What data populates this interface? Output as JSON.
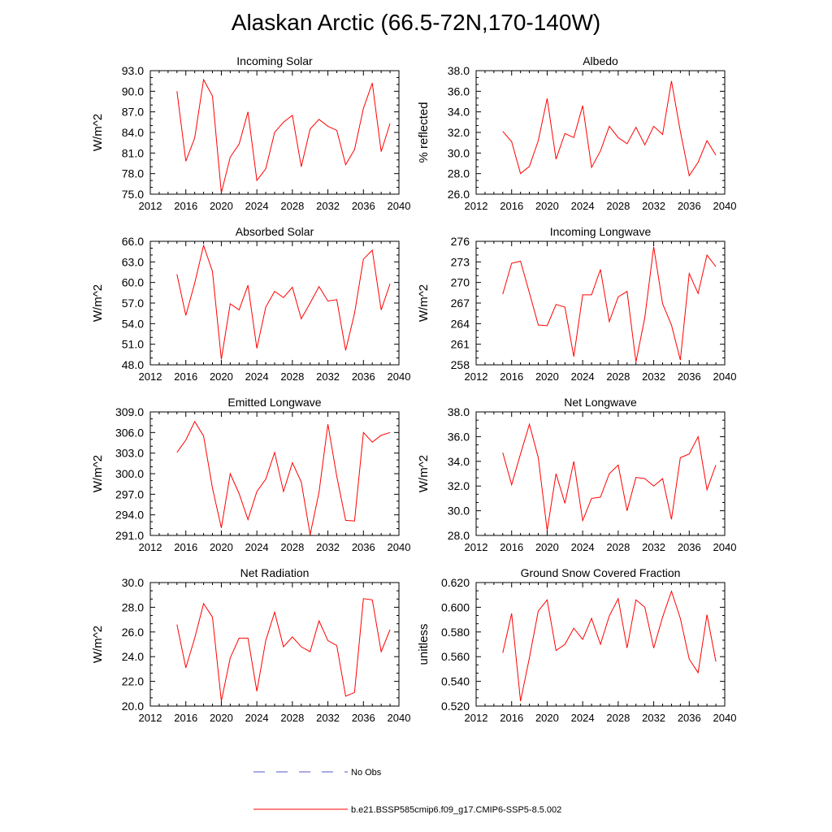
{
  "figure": {
    "title": "Alaskan Arctic (66.5-72N,170-140W)"
  },
  "legend": {
    "obs_label": "No Obs",
    "obs_color": "#5555cc",
    "model_label": "b.e21.BSSP585cmip6.f09_g17.CMIP6-SSP5-8.5.002",
    "model_color": "#ff0000"
  },
  "chart_data": [
    {
      "type": "line",
      "title": "Incoming Solar",
      "ylabel": "W/m^2",
      "xlim": [
        2012,
        2040
      ],
      "xticks": [
        2012,
        2016,
        2020,
        2024,
        2028,
        2032,
        2036,
        2040
      ],
      "ylim": [
        75.0,
        93.0
      ],
      "yticks": [
        "75.0",
        "78.0",
        "81.0",
        "84.0",
        "87.0",
        "90.0",
        "93.0"
      ],
      "x": [
        2015,
        2016,
        2017,
        2018,
        2019,
        2020,
        2021,
        2022,
        2023,
        2024,
        2025,
        2026,
        2027,
        2028,
        2029,
        2030,
        2031,
        2032,
        2033,
        2034,
        2035,
        2036,
        2037,
        2038,
        2039
      ],
      "series": [
        {
          "name": "b.e21.BSSP585cmip6.f09_g17.CMIP6-SSP5-8.5.002",
          "values": [
            90.0,
            79.8,
            83.2,
            91.7,
            89.3,
            75.2,
            80.4,
            82.3,
            87.0,
            77.0,
            78.7,
            84.0,
            85.5,
            86.5,
            79.0,
            84.5,
            85.9,
            84.9,
            84.3,
            79.3,
            81.5,
            87.5,
            91.2,
            81.2,
            85.3
          ]
        }
      ]
    },
    {
      "type": "line",
      "title": "Albedo",
      "ylabel": "% reflected",
      "xlim": [
        2012,
        2040
      ],
      "xticks": [
        2012,
        2016,
        2020,
        2024,
        2028,
        2032,
        2036,
        2040
      ],
      "ylim": [
        26.0,
        38.0
      ],
      "yticks": [
        "26.0",
        "28.0",
        "30.0",
        "32.0",
        "34.0",
        "36.0",
        "38.0"
      ],
      "x": [
        2015,
        2016,
        2017,
        2018,
        2019,
        2020,
        2021,
        2022,
        2023,
        2024,
        2025,
        2026,
        2027,
        2028,
        2029,
        2030,
        2031,
        2032,
        2033,
        2034,
        2035,
        2036,
        2037,
        2038,
        2039
      ],
      "series": [
        {
          "name": "b.e21.BSSP585cmip6.f09_g17.CMIP6-SSP5-8.5.002",
          "values": [
            32.1,
            31.1,
            28.0,
            28.7,
            31.2,
            35.3,
            29.4,
            31.9,
            31.5,
            34.6,
            28.6,
            30.2,
            32.6,
            31.5,
            30.9,
            32.5,
            30.8,
            32.6,
            31.8,
            37.0,
            32.1,
            27.8,
            29.1,
            31.2,
            29.8
          ]
        }
      ]
    },
    {
      "type": "line",
      "title": "Absorbed Solar",
      "ylabel": "W/m^2",
      "xlim": [
        2012,
        2040
      ],
      "xticks": [
        2012,
        2016,
        2020,
        2024,
        2028,
        2032,
        2036,
        2040
      ],
      "ylim": [
        48.0,
        66.0
      ],
      "yticks": [
        "48.0",
        "51.0",
        "54.0",
        "57.0",
        "60.0",
        "63.0",
        "66.0"
      ],
      "x": [
        2015,
        2016,
        2017,
        2018,
        2019,
        2020,
        2021,
        2022,
        2023,
        2024,
        2025,
        2026,
        2027,
        2028,
        2029,
        2030,
        2031,
        2032,
        2033,
        2034,
        2035,
        2036,
        2037,
        2038,
        2039
      ],
      "series": [
        {
          "name": "b.e21.BSSP585cmip6.f09_g17.CMIP6-SSP5-8.5.002",
          "values": [
            61.2,
            55.2,
            59.9,
            65.4,
            61.6,
            48.8,
            56.9,
            56.0,
            59.6,
            50.4,
            56.4,
            58.7,
            57.8,
            59.3,
            54.7,
            57.0,
            59.4,
            57.3,
            57.5,
            50.1,
            55.5,
            63.4,
            64.7,
            56.0,
            59.8
          ]
        }
      ]
    },
    {
      "type": "line",
      "title": "Incoming Longwave",
      "ylabel": "W/m^2",
      "xlim": [
        2012,
        2040
      ],
      "xticks": [
        2012,
        2016,
        2020,
        2024,
        2028,
        2032,
        2036,
        2040
      ],
      "ylim": [
        258,
        276
      ],
      "yticks": [
        "258",
        "261",
        "264",
        "267",
        "270",
        "273",
        "276"
      ],
      "x": [
        2015,
        2016,
        2017,
        2018,
        2019,
        2020,
        2021,
        2022,
        2023,
        2024,
        2025,
        2026,
        2027,
        2028,
        2029,
        2030,
        2031,
        2032,
        2033,
        2034,
        2035,
        2036,
        2037,
        2038,
        2039
      ],
      "series": [
        {
          "name": "b.e21.BSSP585cmip6.f09_g17.CMIP6-SSP5-8.5.002",
          "values": [
            268.3,
            272.8,
            273.1,
            268.5,
            263.8,
            263.7,
            266.8,
            266.4,
            259.2,
            268.2,
            268.2,
            271.9,
            264.3,
            267.9,
            268.7,
            258.4,
            264.9,
            275.2,
            266.9,
            263.8,
            258.7,
            271.3,
            268.4,
            274.0,
            272.3
          ]
        }
      ]
    },
    {
      "type": "line",
      "title": "Emitted Longwave",
      "ylabel": "W/m^2",
      "xlim": [
        2012,
        2040
      ],
      "xticks": [
        2012,
        2016,
        2020,
        2024,
        2028,
        2032,
        2036,
        2040
      ],
      "ylim": [
        291.0,
        309.0
      ],
      "yticks": [
        "291.0",
        "294.0",
        "297.0",
        "300.0",
        "303.0",
        "306.0",
        "309.0"
      ],
      "x": [
        2015,
        2016,
        2017,
        2018,
        2019,
        2020,
        2021,
        2022,
        2023,
        2024,
        2025,
        2026,
        2027,
        2028,
        2029,
        2030,
        2031,
        2032,
        2033,
        2034,
        2035,
        2036,
        2037,
        2038,
        2039
      ],
      "series": [
        {
          "name": "b.e21.BSSP585cmip6.f09_g17.CMIP6-SSP5-8.5.002",
          "values": [
            303.1,
            304.9,
            307.6,
            305.5,
            297.9,
            292.1,
            300.0,
            297.1,
            293.3,
            297.4,
            299.2,
            303.1,
            297.4,
            301.6,
            298.8,
            291.1,
            297.3,
            307.2,
            299.6,
            293.2,
            293.1,
            306.0,
            304.6,
            305.6,
            306.0
          ]
        }
      ]
    },
    {
      "type": "line",
      "title": "Net Longwave",
      "ylabel": "W/m^2",
      "xlim": [
        2012,
        2040
      ],
      "xticks": [
        2012,
        2016,
        2020,
        2024,
        2028,
        2032,
        2036,
        2040
      ],
      "ylim": [
        28.0,
        38.0
      ],
      "yticks": [
        "28.0",
        "30.0",
        "32.0",
        "34.0",
        "36.0",
        "38.0"
      ],
      "x": [
        2015,
        2016,
        2017,
        2018,
        2019,
        2020,
        2021,
        2022,
        2023,
        2024,
        2025,
        2026,
        2027,
        2028,
        2029,
        2030,
        2031,
        2032,
        2033,
        2034,
        2035,
        2036,
        2037,
        2038,
        2039
      ],
      "series": [
        {
          "name": "b.e21.BSSP585cmip6.f09_g17.CMIP6-SSP5-8.5.002",
          "values": [
            34.7,
            32.1,
            34.6,
            37.0,
            34.3,
            28.4,
            33.0,
            30.6,
            34.0,
            29.2,
            31.0,
            31.1,
            33.0,
            33.7,
            30.0,
            32.7,
            32.6,
            32.0,
            32.6,
            29.3,
            34.3,
            34.6,
            36.0,
            31.7,
            33.7
          ]
        }
      ]
    },
    {
      "type": "line",
      "title": "Net Radiation",
      "ylabel": "W/m^2",
      "xlim": [
        2012,
        2040
      ],
      "xticks": [
        2012,
        2016,
        2020,
        2024,
        2028,
        2032,
        2036,
        2040
      ],
      "ylim": [
        20.0,
        30.0
      ],
      "yticks": [
        "20.0",
        "22.0",
        "24.0",
        "26.0",
        "28.0",
        "30.0"
      ],
      "x": [
        2015,
        2016,
        2017,
        2018,
        2019,
        2020,
        2021,
        2022,
        2023,
        2024,
        2025,
        2026,
        2027,
        2028,
        2029,
        2030,
        2031,
        2032,
        2033,
        2034,
        2035,
        2036,
        2037,
        2038,
        2039
      ],
      "series": [
        {
          "name": "b.e21.BSSP585cmip6.f09_g17.CMIP6-SSP5-8.5.002",
          "values": [
            26.6,
            23.1,
            25.5,
            28.3,
            27.2,
            20.4,
            23.9,
            25.5,
            25.5,
            21.2,
            25.3,
            27.6,
            24.8,
            25.6,
            24.8,
            24.4,
            26.9,
            25.3,
            24.9,
            20.8,
            21.1,
            28.7,
            28.6,
            24.4,
            26.2
          ]
        }
      ]
    },
    {
      "type": "line",
      "title": "Ground Snow Covered Fraction",
      "ylabel": "unitless",
      "xlim": [
        2012,
        2040
      ],
      "xticks": [
        2012,
        2016,
        2020,
        2024,
        2028,
        2032,
        2036,
        2040
      ],
      "ylim": [
        0.52,
        0.62
      ],
      "yticks": [
        "0.520",
        "0.540",
        "0.560",
        "0.580",
        "0.600",
        "0.620"
      ],
      "x": [
        2015,
        2016,
        2017,
        2018,
        2019,
        2020,
        2021,
        2022,
        2023,
        2024,
        2025,
        2026,
        2027,
        2028,
        2029,
        2030,
        2031,
        2032,
        2033,
        2034,
        2035,
        2036,
        2037,
        2038,
        2039
      ],
      "series": [
        {
          "name": "b.e21.BSSP585cmip6.f09_g17.CMIP6-SSP5-8.5.002",
          "values": [
            0.563,
            0.595,
            0.524,
            0.559,
            0.597,
            0.606,
            0.565,
            0.57,
            0.583,
            0.574,
            0.591,
            0.57,
            0.593,
            0.607,
            0.567,
            0.606,
            0.6,
            0.567,
            0.592,
            0.613,
            0.591,
            0.558,
            0.547,
            0.594,
            0.556
          ]
        }
      ]
    }
  ]
}
